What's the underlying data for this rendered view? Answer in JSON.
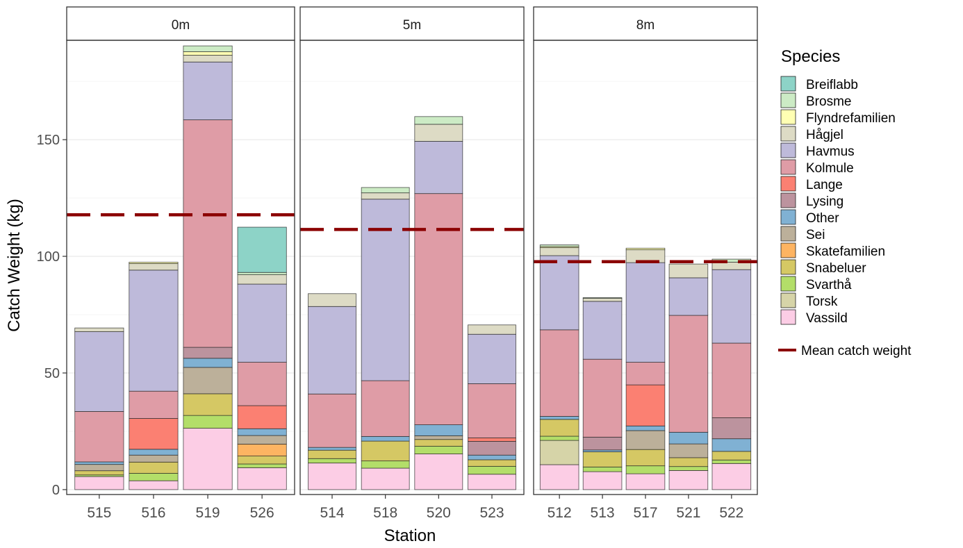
{
  "chart_data": {
    "type": "bar",
    "stacked": true,
    "xlabel": "Station",
    "ylabel": "Catch Weight (kg)",
    "ylim": [
      -2.1,
      192.6
    ],
    "yticks": [
      0,
      50,
      100,
      150
    ],
    "grid": true,
    "legend": {
      "title": "Species",
      "placement": "right",
      "mean_label": "Mean catch weight"
    },
    "mean_color": "#8B0000",
    "species": [
      {
        "name": "Breiflabb",
        "color": "#8DD3C7"
      },
      {
        "name": "Brosme",
        "color": "#CCEBC5"
      },
      {
        "name": "Flyndrefamilien",
        "color": "#FFFFB3"
      },
      {
        "name": "Hågjel",
        "color": "#DDDBC5"
      },
      {
        "name": "Havmus",
        "color": "#BEBADA"
      },
      {
        "name": "Kolmule",
        "color": "#DF9CA6"
      },
      {
        "name": "Lange",
        "color": "#FB8072"
      },
      {
        "name": "Lysing",
        "color": "#BC939E"
      },
      {
        "name": "Other",
        "color": "#80B1D3"
      },
      {
        "name": "Sei",
        "color": "#BCB09A"
      },
      {
        "name": "Skatefamilien",
        "color": "#FDB462"
      },
      {
        "name": "Snabeluer",
        "color": "#D5C864"
      },
      {
        "name": "Svarthå",
        "color": "#B3DE69"
      },
      {
        "name": "Torsk",
        "color": "#D6D4A8"
      },
      {
        "name": "Vassild",
        "color": "#FCCDE5"
      }
    ],
    "facets": [
      {
        "label": "0m",
        "mean": 117.8,
        "stations": [
          {
            "station": "515",
            "values": {
              "Vassild": 5.6,
              "Svarthå": 0.7,
              "Snabeluer": 1.8,
              "Sei": 2.7,
              "Other": 1.1,
              "Kolmule": 21.6,
              "Havmus": 34.2,
              "Hågjel": 1.6
            }
          },
          {
            "station": "516",
            "values": {
              "Vassild": 3.8,
              "Svarthå": 3.2,
              "Snabeluer": 4.8,
              "Sei": 3.0,
              "Other": 2.5,
              "Lange": 13.2,
              "Kolmule": 11.7,
              "Havmus": 51.9,
              "Hågjel": 2.8,
              "Flyndrefamilien": 0.6
            }
          },
          {
            "station": "519",
            "values": {
              "Vassild": 26.3,
              "Svarthå": 5.5,
              "Snabeluer": 9.3,
              "Sei": 11.3,
              "Other": 3.9,
              "Lysing": 4.7,
              "Kolmule": 97.5,
              "Havmus": 24.8,
              "Hågjel": 2.9,
              "Flyndrefamilien": 1.5,
              "Brosme": 2.5
            }
          },
          {
            "station": "526",
            "values": {
              "Vassild": 9.4,
              "Svarthå": 1.6,
              "Snabeluer": 3.4,
              "Skatefamilien": 5.1,
              "Sei": 3.7,
              "Other": 2.9,
              "Lange": 9.9,
              "Kolmule": 18.6,
              "Havmus": 33.5,
              "Hågjel": 4.0,
              "Brosme": 1.0,
              "Breiflabb": 19.4
            }
          }
        ]
      },
      {
        "label": "5m",
        "mean": 111.5,
        "stations": [
          {
            "station": "514",
            "values": {
              "Vassild": 11.4,
              "Svarthå": 1.9,
              "Snabeluer": 3.6,
              "Other": 1.2,
              "Kolmule": 22.9,
              "Havmus": 37.5,
              "Hågjel": 5.5
            }
          },
          {
            "station": "518",
            "values": {
              "Vassild": 9.2,
              "Svarthå": 3.1,
              "Snabeluer": 8.5,
              "Other": 2.0,
              "Kolmule": 23.9,
              "Havmus": 77.8,
              "Hågjel": 2.7,
              "Brosme": 2.3
            }
          },
          {
            "station": "520",
            "values": {
              "Vassild": 15.3,
              "Svarthå": 3.3,
              "Snabeluer": 2.9,
              "Sei": 1.6,
              "Other": 4.7,
              "Kolmule": 99.1,
              "Havmus": 22.4,
              "Hågjel": 7.3,
              "Brosme": 3.3
            }
          },
          {
            "station": "523",
            "values": {
              "Vassild": 6.6,
              "Svarthå": 3.4,
              "Snabeluer": 2.8,
              "Other": 2.0,
              "Lysing": 5.9,
              "Lange": 1.5,
              "Kolmule": 23.2,
              "Havmus": 21.2,
              "Hågjel": 4.0
            }
          }
        ]
      },
      {
        "label": "8m",
        "mean": 97.7,
        "stations": [
          {
            "station": "512",
            "values": {
              "Vassild": 10.7,
              "Torsk": 10.4,
              "Svarthå": 1.8,
              "Snabeluer": 7.2,
              "Other": 1.3,
              "Kolmule": 37.1,
              "Havmus": 31.8,
              "Hågjel": 3.4,
              "Flyndrefamilien": 0.5,
              "Brosme": 0.7
            }
          },
          {
            "station": "513",
            "values": {
              "Vassild": 7.7,
              "Svarthå": 2.0,
              "Snabeluer": 6.5,
              "Other": 0.8,
              "Lysing": 5.5,
              "Kolmule": 33.4,
              "Havmus": 24.8,
              "Hågjel": 1.3,
              "Brosme": 0.3
            }
          },
          {
            "station": "517",
            "values": {
              "Vassild": 6.8,
              "Svarthå": 3.4,
              "Snabeluer": 7.0,
              "Sei": 8.1,
              "Other": 2.0,
              "Lange": 17.6,
              "Kolmule": 9.7,
              "Havmus": 42.7,
              "Hågjel": 5.5,
              "Flyndrefamilien": 0.7
            }
          },
          {
            "station": "521",
            "values": {
              "Vassild": 8.2,
              "Svarthå": 1.7,
              "Snabeluer": 3.8,
              "Sei": 5.9,
              "Other": 5.0,
              "Kolmule": 50.1,
              "Havmus": 16.1,
              "Hågjel": 5.9
            }
          },
          {
            "station": "522",
            "values": {
              "Vassild": 11.2,
              "Svarthå": 1.5,
              "Snabeluer": 3.7,
              "Other": 5.4,
              "Lysing": 9.0,
              "Kolmule": 32.0,
              "Havmus": 31.5,
              "Hågjel": 3.2,
              "Brosme": 1.3
            }
          }
        ]
      }
    ]
  }
}
